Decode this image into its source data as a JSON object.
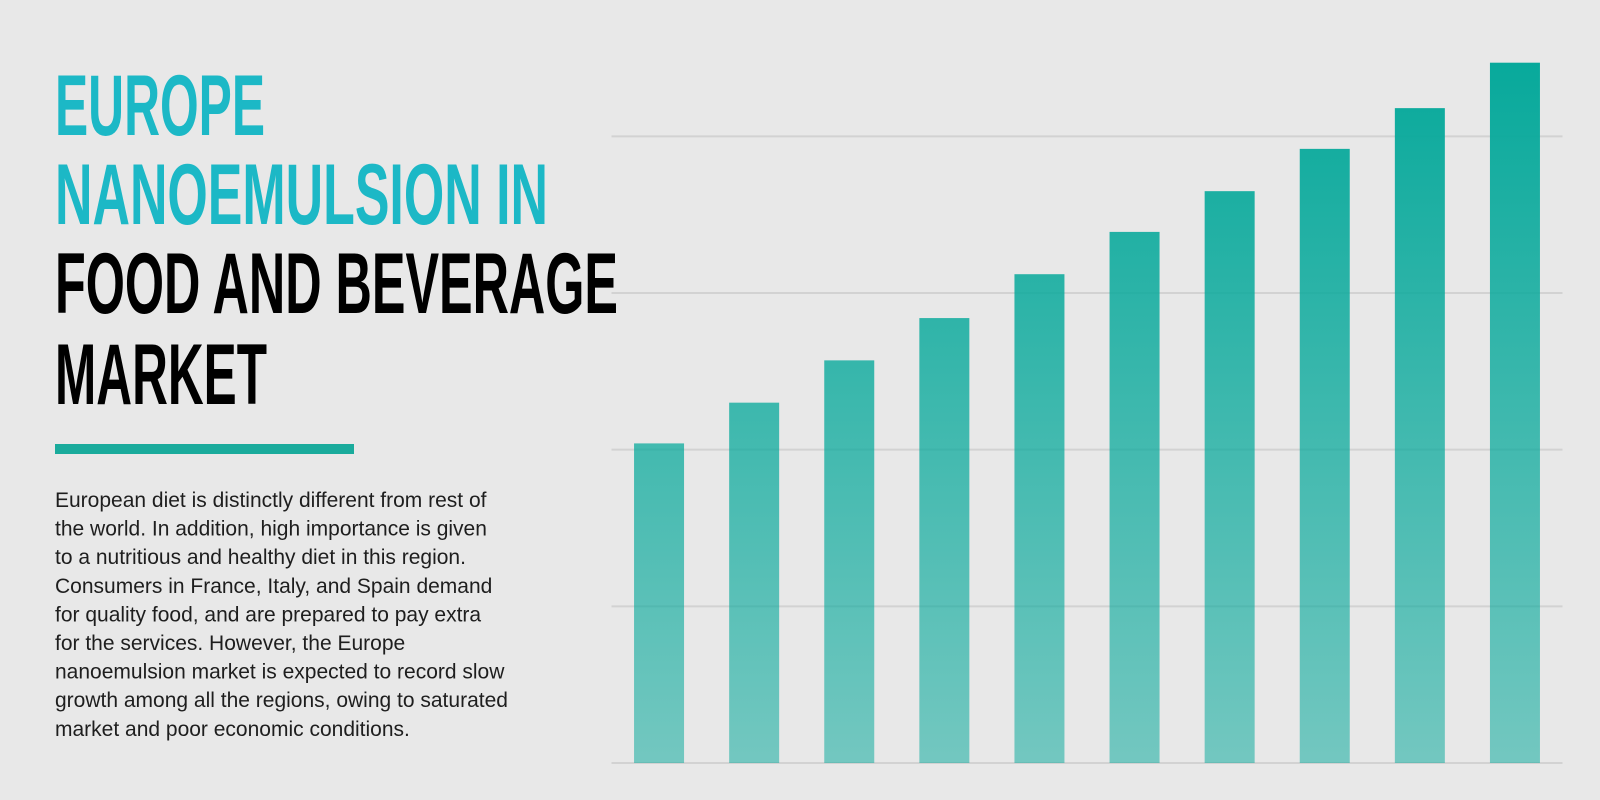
{
  "header": {
    "title_lines": [
      "EUROPE",
      "NANOEMULSION IN",
      "FOOD AND BEVERAGE",
      "MARKET"
    ],
    "title_colors": [
      "#1cb8c6",
      "#1cb8c6",
      "#000000",
      "#000000"
    ],
    "rule_color": "#1aab9c"
  },
  "description": [
    "European diet is distinctly different from rest of",
    "the world. In addition, high importance is given",
    "to a nutritious and healthy diet in this region.",
    "Consumers in France, Italy, and Spain demand",
    "for quality food, and are prepared to pay extra",
    "for the services. However, the Europe",
    "nanoemulsion market is expected to record slow",
    "growth among all the regions, owing to saturated",
    "market and poor economic conditions."
  ],
  "chart_data": {
    "type": "bar",
    "values": [
      2.04,
      2.3,
      2.57,
      2.84,
      3.12,
      3.39,
      3.65,
      3.92,
      4.18,
      4.47
    ],
    "color": "#07a99b",
    "ylim": [
      0,
      4.5
    ],
    "yticks": [
      0,
      1,
      2,
      3,
      4
    ],
    "grid": true,
    "grid_color": "#d2d2d2"
  }
}
